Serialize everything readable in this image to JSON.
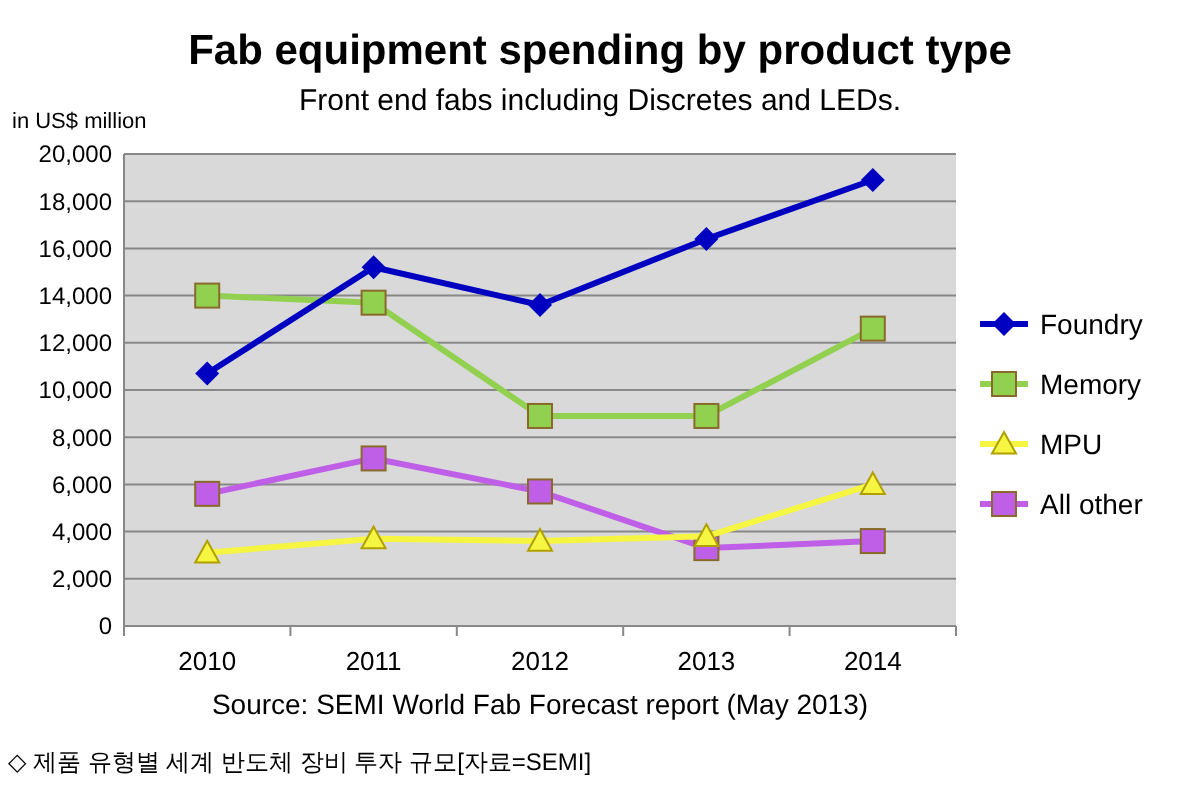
{
  "chart_data": {
    "type": "line",
    "title": "Fab equipment spending by product type",
    "subtitle": "Front end fabs including Discretes and LEDs.",
    "ylabel": "in US$ million",
    "categories": [
      "2010",
      "2011",
      "2012",
      "2013",
      "2014"
    ],
    "series": [
      {
        "name": "Foundry",
        "color": "#0000c0",
        "marker": "diamond",
        "values": [
          10700,
          15200,
          13600,
          16400,
          18900
        ]
      },
      {
        "name": "Memory",
        "color": "#92d050",
        "marker": "square",
        "values": [
          14000,
          13700,
          8900,
          8900,
          12600
        ]
      },
      {
        "name": "MPU",
        "color": "#f5f542",
        "marker": "triangle",
        "values": [
          3100,
          3700,
          3600,
          3800,
          6000
        ]
      },
      {
        "name": "All other",
        "color": "#bf5fe8",
        "marker": "square",
        "values": [
          5600,
          7100,
          5700,
          3300,
          3600
        ]
      }
    ],
    "ylim": [
      0,
      20000
    ],
    "yticks": [
      {
        "value": 0,
        "label": "0"
      },
      {
        "value": 2000,
        "label": "2,000"
      },
      {
        "value": 4000,
        "label": "4,000"
      },
      {
        "value": 6000,
        "label": "6,000"
      },
      {
        "value": 8000,
        "label": "8,000"
      },
      {
        "value": 10000,
        "label": "10,000"
      },
      {
        "value": 12000,
        "label": "12,000"
      },
      {
        "value": 14000,
        "label": "14,000"
      },
      {
        "value": 16000,
        "label": "16,000"
      },
      {
        "value": 18000,
        "label": "18,000"
      },
      {
        "value": 20000,
        "label": "20,000"
      }
    ],
    "grid": "y",
    "legend": "right",
    "line_style": "solid",
    "annotations": [
      "Source: SEMI World Fab Forecast report (May 2013)",
      "◇ 제품 유형별 세계 반도체 장비 투자 규모[자료=SEMI]"
    ]
  }
}
